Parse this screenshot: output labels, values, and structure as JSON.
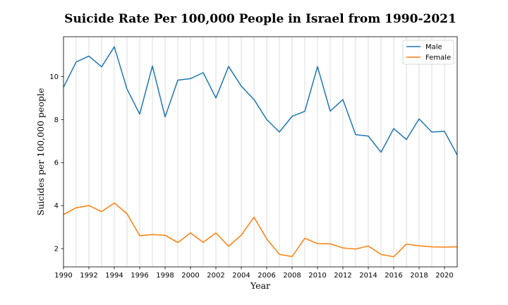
{
  "chart_data": {
    "type": "line",
    "title": "Suicide Rate Per 100,000 People in Israel from 1990-2021",
    "xlabel": "Year",
    "ylabel": "Suicides per 100,000 people",
    "xlim": [
      1990,
      2021
    ],
    "ylim": [
      1.15,
      11.85
    ],
    "x_ticks": [
      1990,
      1992,
      1994,
      1996,
      1998,
      2000,
      2002,
      2004,
      2006,
      2008,
      2010,
      2012,
      2014,
      2016,
      2018,
      2020
    ],
    "y_ticks": [
      2,
      4,
      6,
      8,
      10
    ],
    "grid": "vertical",
    "legend_position": "top-right",
    "x": [
      1990,
      1991,
      1992,
      1993,
      1994,
      1995,
      1996,
      1997,
      1998,
      1999,
      2000,
      2001,
      2002,
      2003,
      2004,
      2005,
      2006,
      2007,
      2008,
      2009,
      2010,
      2011,
      2012,
      2013,
      2014,
      2015,
      2016,
      2017,
      2018,
      2019,
      2020,
      2021
    ],
    "series": [
      {
        "name": "Male",
        "color": "#1f77b4",
        "values": [
          9.5,
          10.68,
          10.95,
          10.45,
          11.38,
          9.42,
          8.25,
          10.49,
          8.12,
          9.83,
          9.9,
          10.18,
          9.0,
          10.47,
          9.55,
          8.93,
          8.0,
          7.42,
          8.15,
          8.38,
          10.46,
          8.39,
          8.93,
          7.3,
          7.23,
          6.48,
          7.58,
          7.07,
          8.03,
          7.42,
          7.45,
          6.35
        ]
      },
      {
        "name": "Female",
        "color": "#ff7f0e",
        "values": [
          3.58,
          3.9,
          4.0,
          3.72,
          4.12,
          3.62,
          2.6,
          2.65,
          2.62,
          2.28,
          2.73,
          2.29,
          2.73,
          2.11,
          2.63,
          3.46,
          2.45,
          1.73,
          1.63,
          2.48,
          2.23,
          2.22,
          2.03,
          1.98,
          2.12,
          1.73,
          1.62,
          2.21,
          2.13,
          2.08,
          2.07,
          2.08
        ]
      }
    ]
  }
}
